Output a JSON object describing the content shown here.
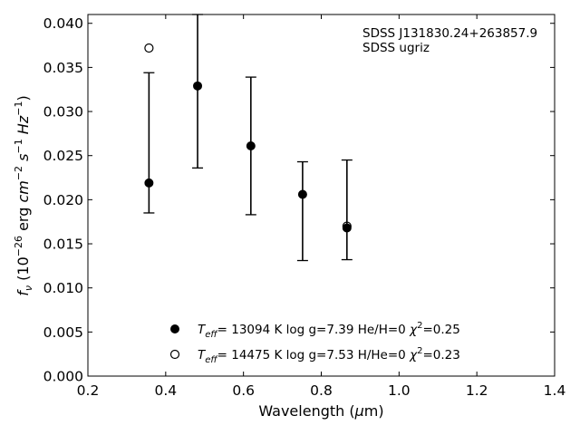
{
  "chart_data": {
    "type": "scatter",
    "xlim": [
      0.2,
      1.4
    ],
    "ylim": [
      0.0,
      0.041
    ],
    "x_ticks": [
      0.2,
      0.4,
      0.6,
      0.8,
      1.0,
      1.2,
      1.4
    ],
    "y_ticks": [
      0.0,
      0.005,
      0.01,
      0.015,
      0.02,
      0.025,
      0.03,
      0.035,
      0.04
    ],
    "x_tick_labels": [
      "0.2",
      "0.4",
      "0.6",
      "0.8",
      "1.0",
      "1.2",
      "1.4"
    ],
    "y_tick_labels": [
      "0.000",
      "0.005",
      "0.010",
      "0.015",
      "0.020",
      "0.025",
      "0.030",
      "0.035",
      "0.040"
    ],
    "xlabel": "Wavelength (μm)",
    "ylabel": "f_ν (10^-26 erg cm^-2 s^-1 Hz^-1)",
    "annotation": [
      "SDSS J131830.24+263857.9",
      "SDSS ugriz"
    ],
    "series": [
      {
        "name": "T_eff= 13094 K  log g=7.39  He/H=0  χ²=0.25",
        "marker": "filled-circle",
        "x": [
          0.357,
          0.482,
          0.619,
          0.752,
          0.866
        ],
        "y": [
          0.0219,
          0.0329,
          0.0261,
          0.0206,
          0.0168
        ],
        "err_lo": [
          0.0185,
          0.0236,
          0.0183,
          0.0131,
          0.0132
        ],
        "err_hi": [
          0.0344,
          0.041,
          0.0339,
          0.0243,
          0.0245
        ]
      },
      {
        "name": "T_eff= 14475 K  log g=7.53  H/He=0  χ²=0.23",
        "marker": "open-circle",
        "x": [
          0.357,
          0.866
        ],
        "y": [
          0.0372,
          0.017
        ]
      }
    ],
    "legend_position": "lower-center",
    "grid": false
  }
}
